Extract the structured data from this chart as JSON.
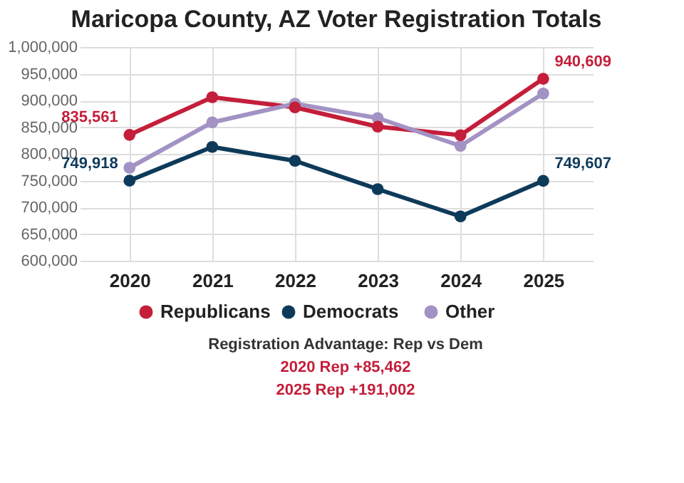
{
  "chart_data": {
    "type": "line",
    "title": "Maricopa County, AZ Voter Registration Totals",
    "categories": [
      "2020",
      "2021",
      "2022",
      "2023",
      "2024",
      "2025"
    ],
    "series": [
      {
        "name": "Republicans",
        "color": "#c41e3a",
        "values": [
          835561,
          906000,
          887000,
          851000,
          835000,
          940609
        ],
        "value_labels": [
          "835,561",
          null,
          null,
          null,
          null,
          "940,609"
        ]
      },
      {
        "name": "Democrats",
        "color": "#0e3a5a",
        "values": [
          749918,
          813000,
          787000,
          734000,
          683000,
          749607
        ],
        "value_labels": [
          "749,918",
          null,
          null,
          null,
          null,
          "749,607"
        ]
      },
      {
        "name": "Other",
        "color": "#a392c4",
        "values": [
          774000,
          859000,
          894000,
          867000,
          815000,
          913000
        ]
      }
    ],
    "ylim": [
      600000,
      1000000
    ],
    "yticks": [
      {
        "value": 600000,
        "label": "600,000"
      },
      {
        "value": 650000,
        "label": "650,000"
      },
      {
        "value": 700000,
        "label": "700,000"
      },
      {
        "value": 750000,
        "label": "750,000"
      },
      {
        "value": 800000,
        "label": "800,000"
      },
      {
        "value": 850000,
        "label": "850,000"
      },
      {
        "value": 900000,
        "label": "900,000"
      },
      {
        "value": 950000,
        "label": "950,000"
      },
      {
        "value": 1000000,
        "label": "1,000,000"
      }
    ],
    "grid": true,
    "legend": "bottom",
    "marker": "circle",
    "line_style": "solid",
    "annotations": [
      "Registration Advantage: Rep vs Dem",
      "2020 Rep +85,462",
      "2025 Rep +191,002"
    ]
  }
}
